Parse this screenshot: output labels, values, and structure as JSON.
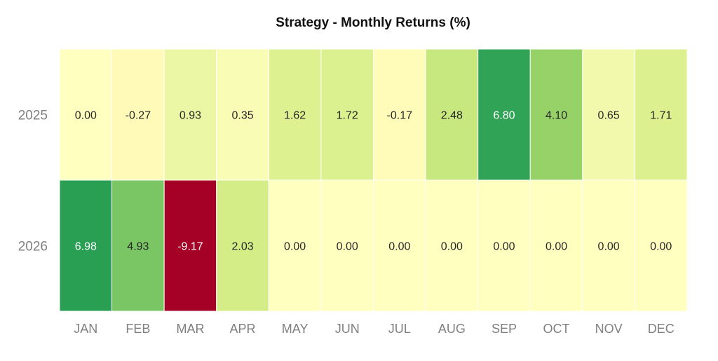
{
  "chart_data": {
    "type": "heatmap",
    "title": "Strategy - Monthly Returns (%)",
    "xlabel": "",
    "ylabel": "",
    "rows": [
      "2025",
      "2026"
    ],
    "columns": [
      "JAN",
      "FEB",
      "MAR",
      "APR",
      "MAY",
      "JUN",
      "JUL",
      "AUG",
      "SEP",
      "OCT",
      "NOV",
      "DEC"
    ],
    "values": [
      [
        0.0,
        -0.27,
        0.93,
        0.35,
        1.62,
        1.72,
        -0.17,
        2.48,
        6.8,
        4.1,
        0.65,
        1.71
      ],
      [
        6.98,
        4.93,
        -9.17,
        2.03,
        0.0,
        0.0,
        0.0,
        0.0,
        0.0,
        0.0,
        0.0,
        0.0
      ]
    ],
    "labels": [
      [
        "0.00",
        "-0.27",
        "0.93",
        "0.35",
        "1.62",
        "1.72",
        "-0.17",
        "2.48",
        "6.80",
        "4.10",
        "0.65",
        "1.71"
      ],
      [
        "6.98",
        "4.93",
        "-9.17",
        "2.03",
        "0.00",
        "0.00",
        "0.00",
        "0.00",
        "0.00",
        "0.00",
        "0.00",
        "0.00"
      ]
    ],
    "colormap": "RdYlGn",
    "color_range": [
      -9.17,
      9.17
    ],
    "grid": false,
    "legend": "none"
  }
}
